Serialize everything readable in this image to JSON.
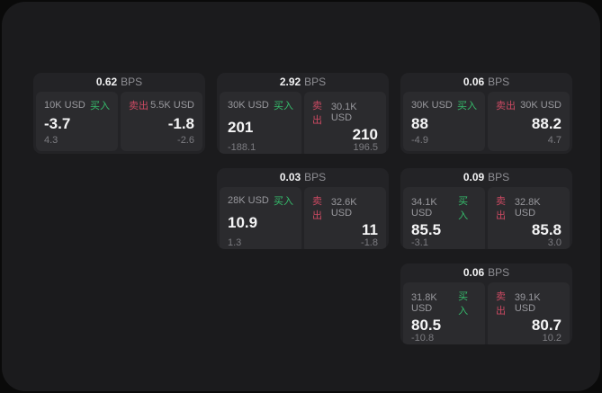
{
  "colors": {
    "outer": "#0a0a0a",
    "surface": "#1b1b1d",
    "card": "#232326",
    "panel": "#2b2b2e",
    "buy_green": "#35bd6c",
    "sell_red": "#cc4a62"
  },
  "labels": {
    "bps": "BPS",
    "buy": "买入",
    "sell": "卖出"
  },
  "cards": [
    {
      "bps": "0.62",
      "buy": {
        "amount": "10K USD",
        "value": "-3.7",
        "delta": "4.3"
      },
      "sell": {
        "amount": "5.5K USD",
        "value": "-1.8",
        "delta": "-2.6"
      }
    },
    {
      "bps": "2.92",
      "buy": {
        "amount": "30K USD",
        "value": "201",
        "delta": "-188.1"
      },
      "sell": {
        "amount": "30.1K USD",
        "value": "210",
        "delta": "196.5"
      }
    },
    {
      "bps": "0.06",
      "buy": {
        "amount": "30K USD",
        "value": "88",
        "delta": "-4.9"
      },
      "sell": {
        "amount": "30K USD",
        "value": "88.2",
        "delta": "4.7"
      }
    },
    {
      "bps": "0.03",
      "buy": {
        "amount": "28K USD",
        "value": "10.9",
        "delta": "1.3"
      },
      "sell": {
        "amount": "32.6K USD",
        "value": "11",
        "delta": "-1.8"
      }
    },
    {
      "bps": "0.09",
      "buy": {
        "amount": "34.1K USD",
        "value": "85.5",
        "delta": "-3.1"
      },
      "sell": {
        "amount": "32.8K USD",
        "value": "85.8",
        "delta": "3.0"
      }
    },
    {
      "bps": "0.06",
      "buy": {
        "amount": "31.8K USD",
        "value": "80.5",
        "delta": "-10.8"
      },
      "sell": {
        "amount": "39.1K USD",
        "value": "80.7",
        "delta": "10.2"
      }
    }
  ]
}
